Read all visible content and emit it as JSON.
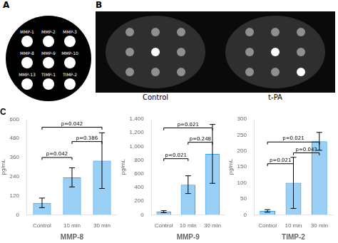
{
  "chart_data": [
    {
      "type": "dot_array",
      "title": "A",
      "categories": [
        "MMP-1",
        "MMP-2",
        "MMP-3",
        "MMP-8",
        "MMP-9",
        "MMP-10",
        "MMP-13",
        "TIMP-1",
        "TIMP-2"
      ],
      "color": "#ffffff"
    },
    {
      "type": "dot_array",
      "title": "B",
      "series": [
        {
          "name": "Control",
          "colors": [
            "#909090",
            "#909090",
            "#909090",
            "#909090",
            "#ffffff",
            "#909090",
            "#909090",
            "#909090",
            "#909090"
          ]
        },
        {
          "name": "t-PA",
          "colors": [
            "#909090",
            "#909090",
            "#909090",
            "#909090",
            "#ffffff",
            "#909090",
            "#909090",
            "#909090",
            "#ffffff"
          ]
        }
      ]
    },
    {
      "type": "bar",
      "title": "C",
      "categories": [
        "Control",
        "10 min",
        "30 min"
      ],
      "values": [
        75,
        235,
        340
      ],
      "errors": [
        30,
        60,
        175
      ],
      "ylim": [
        0,
        600
      ],
      "yticks": [
        0,
        120,
        240,
        360,
        480,
        600
      ],
      "ylabel": "pg/mL",
      "xlabel": "MMP-8",
      "grid": false,
      "annotations": [
        {
          "from": "Control",
          "to": "10 min",
          "y": 360,
          "label": "p=0.042"
        },
        {
          "from": "Control",
          "to": "30 min",
          "y": 550,
          "label": "p=0.042"
        },
        {
          "from": "10 min",
          "to": "30 min",
          "y": 460,
          "label": "p=0.386"
        }
      ]
    },
    {
      "type": "bar",
      "categories": [
        "Control",
        "10 min",
        "30 min"
      ],
      "values": [
        45,
        440,
        890
      ],
      "errors": [
        15,
        130,
        430
      ],
      "ylim": [
        0,
        1400
      ],
      "yticks": [
        0,
        200,
        400,
        600,
        800,
        1000,
        1200,
        1400
      ],
      "ylabel": "pg/mL",
      "xlabel": "MMP-9",
      "grid": false,
      "annotations": [
        {
          "from": "Control",
          "to": "10 min",
          "y": 820,
          "label": "p=0.021"
        },
        {
          "from": "Control",
          "to": "30 min",
          "y": 1270,
          "label": "p=0.021"
        },
        {
          "from": "10 min",
          "to": "30 min",
          "y": 1060,
          "label": "p=0.248"
        }
      ]
    },
    {
      "type": "bar",
      "categories": [
        "Control",
        "10 min",
        "30 min"
      ],
      "values": [
        12,
        100,
        230
      ],
      "errors": [
        4,
        80,
        28
      ],
      "ylim": [
        0,
        300
      ],
      "yticks": [
        0,
        50,
        100,
        150,
        200,
        250,
        300
      ],
      "ylabel": "pg/mL",
      "xlabel": "TIMP-2",
      "grid": false,
      "annotations": [
        {
          "from": "Control",
          "to": "10 min",
          "y": 160,
          "label": "p=0.021"
        },
        {
          "from": "Control",
          "to": "30 min",
          "y": 228,
          "label": "p=0.021"
        },
        {
          "from": "10 min",
          "to": "30 min",
          "y": 194,
          "label": "p=0.043"
        }
      ]
    }
  ]
}
